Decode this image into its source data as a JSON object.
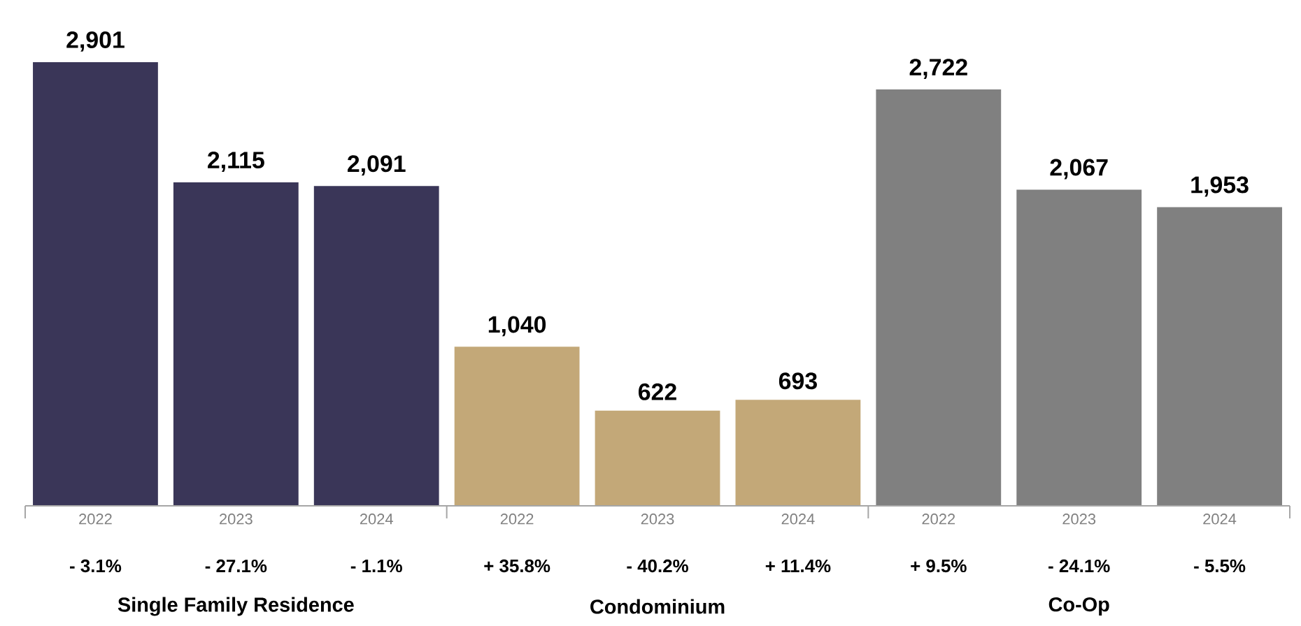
{
  "chart_data": {
    "type": "bar",
    "categories": [
      "2022",
      "2023",
      "2024",
      "2022",
      "2023",
      "2024",
      "2022",
      "2023",
      "2024"
    ],
    "values": [
      2901,
      2115,
      2091,
      1040,
      622,
      693,
      2722,
      2067,
      1953
    ],
    "value_labels": [
      "2,901",
      "2,115",
      "2,091",
      "1,040",
      "622",
      "693",
      "2,722",
      "2,067",
      "1,953"
    ],
    "colors": [
      "#3a3658",
      "#3a3658",
      "#3a3658",
      "#c3a878",
      "#c3a878",
      "#c3a878",
      "#808080",
      "#808080",
      "#808080"
    ],
    "annotations": [
      "- 3.1%",
      "- 27.1%",
      "- 1.1%",
      "+ 35.8%",
      "- 40.2%",
      "+ 11.4%",
      "+ 9.5%",
      "- 24.1%",
      "- 5.5%",
      "Single Family Residence",
      "Condominium",
      "Co-Op"
    ]
  }
}
